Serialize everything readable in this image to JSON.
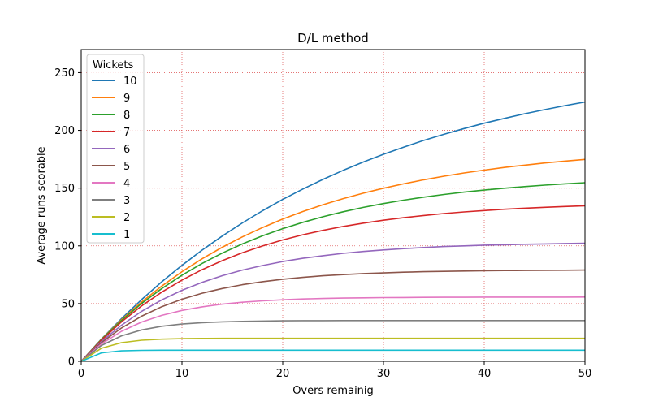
{
  "chart_data": {
    "type": "line",
    "title": "D/L method",
    "xlabel": "Overs remainig",
    "ylabel": "Average runs scorable",
    "xlim": [
      0,
      50
    ],
    "ylim": [
      0,
      270
    ],
    "xticks": [
      0,
      10,
      20,
      30,
      40,
      50
    ],
    "yticks": [
      0,
      50,
      100,
      150,
      200,
      250
    ],
    "grid": true,
    "grid_color": "#e06060",
    "legend": {
      "title": "Wickets",
      "placement": "top-left"
    },
    "x": [
      0,
      2,
      4,
      6,
      8,
      10,
      12,
      14,
      16,
      18,
      20,
      22,
      24,
      26,
      28,
      30,
      32,
      34,
      36,
      38,
      40,
      42,
      44,
      46,
      48,
      50
    ],
    "series": [
      {
        "name": "10",
        "color": "#1f77b4",
        "values": [
          0,
          19.2,
          37.0,
          53.5,
          68.9,
          83.1,
          96.3,
          108.5,
          119.9,
          130.4,
          140.2,
          149.2,
          157.6,
          165.4,
          172.6,
          179.3,
          185.5,
          191.3,
          196.6,
          201.6,
          206.2,
          210.4,
          214.4,
          218.0,
          221.4,
          224.6
        ]
      },
      {
        "name": "9",
        "color": "#ff7f0e",
        "values": [
          0,
          19.0,
          36.1,
          51.4,
          65.2,
          77.6,
          88.8,
          98.8,
          107.8,
          115.9,
          123.2,
          129.7,
          135.6,
          140.9,
          145.6,
          149.9,
          153.7,
          157.2,
          160.3,
          163.1,
          165.6,
          167.9,
          169.9,
          171.8,
          173.4,
          174.9
        ]
      },
      {
        "name": "8",
        "color": "#2ca02c",
        "values": [
          0,
          18.8,
          35.4,
          50.1,
          63.1,
          74.6,
          84.8,
          93.7,
          101.7,
          108.7,
          114.9,
          120.4,
          125.2,
          129.5,
          133.3,
          136.6,
          139.6,
          142.2,
          144.5,
          146.5,
          148.3,
          149.9,
          151.3,
          152.6,
          153.7,
          154.7
        ]
      },
      {
        "name": "7",
        "color": "#d62728",
        "values": [
          0,
          18.3,
          34.2,
          48.0,
          60.0,
          70.4,
          79.4,
          87.2,
          94.0,
          99.9,
          105.1,
          109.6,
          113.4,
          116.8,
          119.7,
          122.2,
          124.4,
          126.3,
          128.0,
          129.4,
          130.6,
          131.7,
          132.6,
          133.4,
          134.1,
          134.7
        ]
      },
      {
        "name": "6",
        "color": "#9467bd",
        "values": [
          0,
          17.1,
          31.3,
          43.3,
          53.2,
          61.5,
          68.4,
          74.2,
          79.0,
          83.0,
          86.4,
          89.2,
          91.5,
          93.5,
          95.1,
          96.5,
          97.6,
          98.6,
          99.4,
          100.0,
          100.6,
          101.0,
          101.4,
          101.7,
          102.0,
          102.2
        ]
      },
      {
        "name": "5",
        "color": "#8c564b",
        "values": [
          0,
          16.1,
          28.9,
          39.1,
          47.3,
          53.8,
          59.0,
          63.1,
          66.4,
          69.0,
          71.1,
          72.7,
          74.1,
          75.1,
          76.0,
          76.6,
          77.2,
          77.6,
          77.9,
          78.2,
          78.4,
          78.6,
          78.7,
          78.8,
          78.9,
          79.0
        ]
      },
      {
        "name": "4",
        "color": "#e377c2",
        "values": [
          0,
          15.0,
          26.0,
          34.0,
          39.8,
          44.1,
          47.2,
          49.5,
          51.2,
          52.4,
          53.3,
          54.0,
          54.4,
          54.8,
          55.0,
          55.2,
          55.3,
          55.4,
          55.5,
          55.5,
          55.6,
          55.6,
          55.6,
          55.6,
          55.6,
          55.7
        ]
      },
      {
        "name": "3",
        "color": "#7f7f7f",
        "values": [
          0,
          13.7,
          22.1,
          27.2,
          30.4,
          32.3,
          33.5,
          34.2,
          34.6,
          34.9,
          35.1,
          35.2,
          35.2,
          35.3,
          35.3,
          35.3,
          35.3,
          35.3,
          35.3,
          35.3,
          35.3,
          35.3,
          35.3,
          35.3,
          35.3,
          35.3
        ]
      },
      {
        "name": "2",
        "color": "#bcbd22",
        "values": [
          0,
          11.3,
          16.2,
          18.3,
          19.2,
          19.6,
          19.8,
          19.9,
          19.9,
          19.9,
          19.9,
          19.9,
          19.9,
          19.9,
          19.9,
          19.9,
          19.9,
          19.9,
          19.9,
          19.9,
          19.9,
          19.9,
          19.9,
          19.9,
          19.9,
          19.9
        ]
      },
      {
        "name": "1",
        "color": "#17becf",
        "values": [
          0,
          7.3,
          9.1,
          9.5,
          9.6,
          9.6,
          9.6,
          9.6,
          9.6,
          9.6,
          9.6,
          9.6,
          9.6,
          9.6,
          9.6,
          9.6,
          9.6,
          9.6,
          9.6,
          9.6,
          9.6,
          9.6,
          9.6,
          9.6,
          9.6,
          9.6
        ]
      }
    ]
  }
}
